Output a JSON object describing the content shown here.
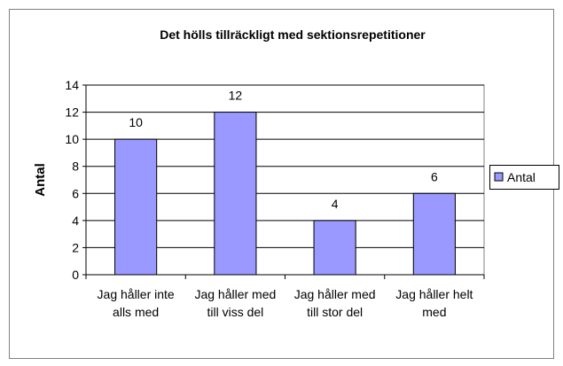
{
  "chart_data": {
    "type": "bar",
    "title": "Det hölls tillräckligt med sektionsrepetitioner",
    "categories": [
      "Jag håller inte alls med",
      "Jag håller med till viss del",
      "Jag håller med till stor del",
      "Jag håller helt med"
    ],
    "series": [
      {
        "name": "Antal",
        "color": "#9999ff",
        "values": [
          10,
          12,
          4,
          6
        ]
      }
    ],
    "ylabel": "Antal",
    "ylim": [
      0,
      14
    ],
    "yticks": [
      0,
      2,
      4,
      6,
      8,
      10,
      12,
      14
    ],
    "grid": true,
    "legend": "right"
  }
}
